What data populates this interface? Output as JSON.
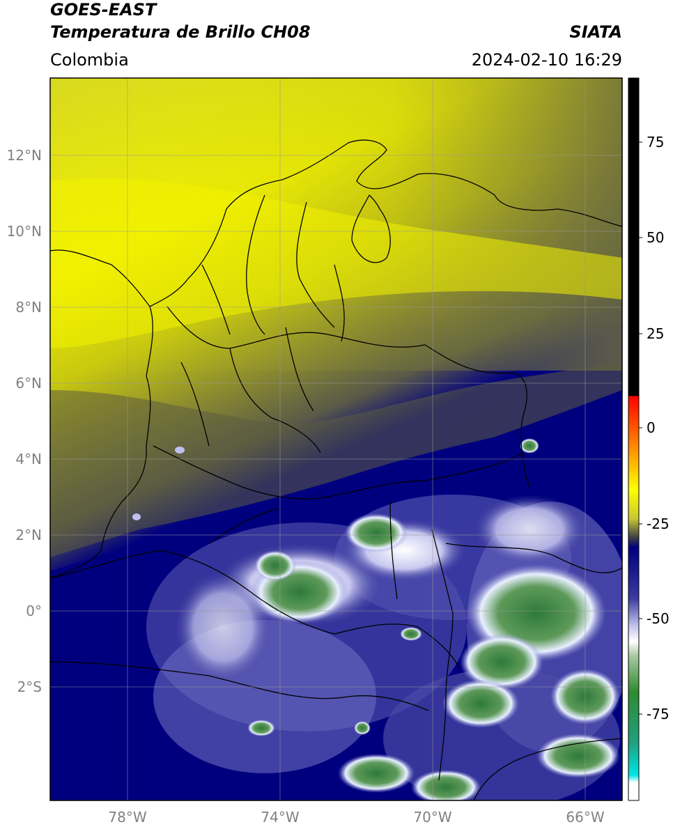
{
  "header": {
    "satellite": "GOES-EAST",
    "product": "Temperatura de Brillo CH08",
    "source": "SIATA",
    "region": "Colombia",
    "datetime": "2024-02-10 16:29"
  },
  "map": {
    "lat_labels": [
      "12°N",
      "10°N",
      "8°N",
      "6°N",
      "4°N",
      "2°N",
      "0°",
      "2°S"
    ],
    "lat_values": [
      12,
      10,
      8,
      6,
      4,
      2,
      0,
      -2
    ],
    "lon_labels": [
      "78°W",
      "74°W",
      "70°W",
      "66°W"
    ],
    "lon_values": [
      -78,
      -74,
      -70,
      -66
    ],
    "extent": {
      "lon_min": -80,
      "lon_max": -65,
      "lat_min": -5,
      "lat_max": 14
    }
  },
  "colorbar": {
    "tick_labels": [
      "75",
      "50",
      "25",
      "0",
      "-25",
      "-50",
      "-75"
    ],
    "tick_values": [
      75,
      50,
      25,
      0,
      -25,
      -50,
      -75
    ],
    "range": [
      -100,
      90
    ],
    "colors": {
      "black": "#000000",
      "red": "#ff2200",
      "orange": "#ff9900",
      "yellow": "#ffff00",
      "olive": "#5a5a3a",
      "navy": "#000080",
      "lavender": "#c8c8f0",
      "white": "#ffffff",
      "green": "#2e8b2e",
      "teal": "#20b2aa",
      "cyan": "#00e5e5"
    }
  }
}
